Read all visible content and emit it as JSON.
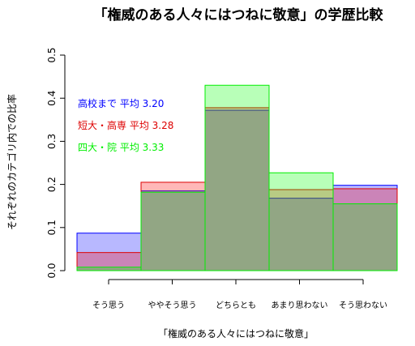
{
  "chart_data": {
    "type": "bar",
    "title": "「権威のある人々にはつねに敬意」の学歴比較",
    "xlabel": "「権威のある人々にはつねに敬意」",
    "ylabel": "それぞれのカテゴリ内での比率",
    "ylim": [
      0,
      0.5
    ],
    "yticks": [
      "0.0",
      "0.1",
      "0.2",
      "0.3",
      "0.4",
      "0.5"
    ],
    "categories": [
      "そう思う",
      "ややそう思う",
      "どちらとも",
      "あまり思わない",
      "そう思わない"
    ],
    "series": [
      {
        "name": "高校まで",
        "avg_label": "平均 3.20",
        "color": "#0000ff",
        "fill": "rgba(0,0,255,0.28)",
        "values": [
          0.087,
          0.185,
          0.372,
          0.168,
          0.198
        ]
      },
      {
        "name": "短大・高専",
        "avg_label": "平均 3.28",
        "color": "#dd0000",
        "fill": "rgba(255,0,0,0.28)",
        "values": [
          0.042,
          0.205,
          0.378,
          0.188,
          0.19
        ]
      },
      {
        "name": "四大・院",
        "avg_label": "平均 3.33",
        "color": "#00ee00",
        "fill": "rgba(0,255,0,0.28)",
        "values": [
          0.008,
          0.182,
          0.43,
          0.227,
          0.155
        ]
      }
    ],
    "legend_position": "top-left",
    "grid": false
  }
}
